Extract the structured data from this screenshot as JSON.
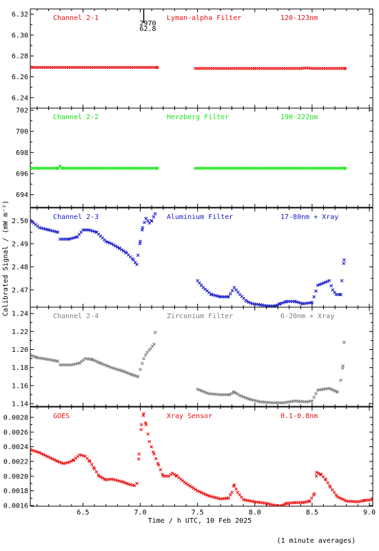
{
  "colors": {
    "red": "#e81010",
    "green": "#14e614",
    "blue": "#1818c8",
    "gray": "#7c7c7c",
    "axis": "#000000"
  },
  "axes": {
    "xlabel": "Time / h UTC, 10 Feb 2025",
    "ylabel": "Calibrated Signal / (mW m⁻²)",
    "xlim": [
      6.04,
      9.03
    ],
    "xticks": [
      "6.5",
      "7.0",
      "7.5",
      "8.0",
      "8.5",
      "9.0"
    ],
    "footnote": "(1 minute averages)",
    "marker": {
      "x": 7.03,
      "line1": "2970",
      "line2": "62.8"
    }
  },
  "chart_data": [
    {
      "type": "scatter",
      "color_key": "red",
      "labels": {
        "channel": "Channel 2-1",
        "filter": "Lyman-alpha Filter",
        "band": "120-123nm"
      },
      "ylim": [
        6.23,
        6.325
      ],
      "yticks": [
        "6.24",
        "6.26",
        "6.28",
        "6.30",
        "6.32"
      ],
      "series": [
        [
          [
            6.04,
            6.269
          ],
          [
            7.15,
            6.269
          ]
        ],
        [
          [
            7.48,
            6.268
          ],
          [
            8.0,
            6.268
          ],
          [
            8.4,
            6.268
          ],
          [
            8.45,
            6.2685
          ],
          [
            8.5,
            6.268
          ],
          [
            8.79,
            6.268
          ]
        ]
      ]
    },
    {
      "type": "scatter",
      "color_key": "green",
      "labels": {
        "channel": "Channel 2-2",
        "filter": "Herzberg Filter",
        "band": "190-222nm"
      },
      "ylim": [
        692.8,
        702.2
      ],
      "yticks": [
        "694",
        "696",
        "698",
        "700",
        "702"
      ],
      "series": [
        [
          [
            6.04,
            696.5
          ],
          [
            6.28,
            696.5
          ],
          [
            6.3,
            696.7
          ],
          [
            6.32,
            696.5
          ],
          [
            7.15,
            696.5
          ]
        ],
        [
          [
            7.48,
            696.5
          ],
          [
            8.79,
            696.5
          ]
        ]
      ]
    },
    {
      "type": "scatter",
      "color_key": "blue",
      "labels": {
        "channel": "Channel 2-3",
        "filter": "Aluminium Filter",
        "band": "17-80nm + Xray"
      },
      "ylim": [
        2.4625,
        2.5055
      ],
      "yticks": [
        "2.47",
        "2.48",
        "2.49",
        "2.50"
      ],
      "series": [
        [
          [
            6.04,
            2.5
          ],
          [
            6.07,
            2.499
          ],
          [
            6.12,
            2.497
          ],
          [
            6.2,
            2.496
          ],
          [
            6.28,
            2.495
          ]
        ],
        [
          [
            6.3,
            2.492
          ],
          [
            6.38,
            2.492
          ],
          [
            6.45,
            2.493
          ],
          [
            6.5,
            2.496
          ],
          [
            6.55,
            2.496
          ],
          [
            6.62,
            2.495
          ],
          [
            6.7,
            2.491
          ],
          [
            6.75,
            2.49
          ],
          [
            6.82,
            2.488
          ],
          [
            6.88,
            2.486
          ],
          [
            6.94,
            2.483
          ],
          [
            6.97,
            2.481
          ]
        ],
        [
          [
            6.98,
            2.485
          ],
          [
            7.0,
            2.491
          ],
          [
            7.02,
            2.497
          ],
          [
            7.05,
            2.501
          ],
          [
            7.08,
            2.499
          ],
          [
            7.1,
            2.5
          ],
          [
            7.13,
            2.503
          ]
        ],
        [
          [
            7.5,
            2.474
          ],
          [
            7.55,
            2.471
          ],
          [
            7.62,
            2.468
          ],
          [
            7.7,
            2.467
          ],
          [
            7.77,
            2.467
          ],
          [
            7.82,
            2.471
          ],
          [
            7.87,
            2.468
          ],
          [
            7.93,
            2.465
          ],
          [
            7.98,
            2.464
          ],
          [
            8.05,
            2.4635
          ],
          [
            8.12,
            2.463
          ],
          [
            8.18,
            2.463
          ],
          [
            8.22,
            2.464
          ],
          [
            8.28,
            2.465
          ],
          [
            8.35,
            2.465
          ],
          [
            8.42,
            2.464
          ],
          [
            8.5,
            2.4645
          ],
          [
            8.55,
            2.472
          ],
          [
            8.6,
            2.473
          ],
          [
            8.65,
            2.474
          ],
          [
            8.68,
            2.47
          ],
          [
            8.71,
            2.468
          ],
          [
            8.75,
            2.468
          ]
        ],
        [
          [
            8.76,
            2.474
          ],
          [
            8.78,
            2.483
          ]
        ]
      ]
    },
    {
      "type": "scatter",
      "color_key": "gray",
      "labels": {
        "channel": "Channel 2-4",
        "filter": "Zirconium Filter",
        "band": "6-20nm + Xray"
      },
      "ylim": [
        1.137,
        1.247
      ],
      "yticks": [
        "1.14",
        "1.16",
        "1.18",
        "1.20",
        "1.22",
        "1.24"
      ],
      "series": [
        [
          [
            6.04,
            1.194
          ],
          [
            6.1,
            1.191
          ],
          [
            6.2,
            1.189
          ],
          [
            6.28,
            1.187
          ]
        ],
        [
          [
            6.3,
            1.183
          ],
          [
            6.4,
            1.183
          ],
          [
            6.47,
            1.185
          ],
          [
            6.52,
            1.19
          ],
          [
            6.58,
            1.189
          ],
          [
            6.65,
            1.185
          ],
          [
            6.75,
            1.18
          ],
          [
            6.85,
            1.176
          ],
          [
            6.93,
            1.172
          ],
          [
            6.98,
            1.17
          ]
        ],
        [
          [
            7.0,
            1.178
          ],
          [
            7.03,
            1.19
          ],
          [
            7.06,
            1.197
          ],
          [
            7.09,
            1.201
          ],
          [
            7.12,
            1.206
          ],
          [
            7.13,
            1.219
          ]
        ],
        [
          [
            7.5,
            1.156
          ],
          [
            7.6,
            1.151
          ],
          [
            7.7,
            1.15
          ],
          [
            7.78,
            1.15
          ],
          [
            7.82,
            1.153
          ],
          [
            7.87,
            1.149
          ],
          [
            7.95,
            1.145
          ],
          [
            8.05,
            1.142
          ],
          [
            8.15,
            1.141
          ],
          [
            8.25,
            1.141
          ],
          [
            8.35,
            1.143
          ],
          [
            8.45,
            1.142
          ],
          [
            8.5,
            1.143
          ],
          [
            8.55,
            1.155
          ],
          [
            8.65,
            1.157
          ],
          [
            8.72,
            1.153
          ]
        ],
        [
          [
            8.75,
            1.166
          ],
          [
            8.77,
            1.182
          ],
          [
            8.78,
            1.208
          ]
        ]
      ]
    },
    {
      "type": "scatter",
      "color_key": "red",
      "labels": {
        "channel": "GOES",
        "filter": "Xray Sensor",
        "band": "0.1-0.8nm"
      },
      "ylim": [
        0.00159,
        0.00294
      ],
      "yticks": [
        "0.0016",
        "0.0018",
        "0.0020",
        "0.0022",
        "0.0024",
        "0.0026",
        "0.0028"
      ],
      "series": [
        [
          [
            6.04,
            0.00236
          ],
          [
            6.12,
            0.00232
          ],
          [
            6.2,
            0.00226
          ],
          [
            6.28,
            0.0022
          ],
          [
            6.33,
            0.00217
          ],
          [
            6.38,
            0.00219
          ],
          [
            6.42,
            0.00222
          ],
          [
            6.47,
            0.00229
          ],
          [
            6.52,
            0.00227
          ],
          [
            6.56,
            0.0022
          ],
          [
            6.6,
            0.0021
          ],
          [
            6.64,
            0.002
          ],
          [
            6.7,
            0.00195
          ],
          [
            6.75,
            0.00196
          ],
          [
            6.8,
            0.00194
          ],
          [
            6.85,
            0.00192
          ],
          [
            6.9,
            0.00189
          ],
          [
            6.95,
            0.00187
          ]
        ],
        [
          [
            6.97,
            0.0019
          ],
          [
            6.99,
            0.0023
          ],
          [
            7.01,
            0.0027
          ],
          [
            7.03,
            0.00285
          ],
          [
            7.05,
            0.0027
          ],
          [
            7.08,
            0.00247
          ],
          [
            7.12,
            0.0023
          ],
          [
            7.16,
            0.00215
          ],
          [
            7.2,
            0.002
          ],
          [
            7.25,
            0.002
          ],
          [
            7.28,
            0.00204
          ],
          [
            7.32,
            0.002
          ],
          [
            7.4,
            0.0019
          ],
          [
            7.5,
            0.0018
          ],
          [
            7.6,
            0.00173
          ],
          [
            7.7,
            0.00169
          ],
          [
            7.77,
            0.0017
          ],
          [
            7.8,
            0.00178
          ],
          [
            7.82,
            0.00188
          ],
          [
            7.85,
            0.00178
          ],
          [
            7.9,
            0.00168
          ],
          [
            8.0,
            0.00165
          ],
          [
            8.1,
            0.00163
          ],
          [
            8.15,
            0.00161
          ],
          [
            8.22,
            0.00159
          ],
          [
            8.28,
            0.00163
          ],
          [
            8.35,
            0.00164
          ],
          [
            8.42,
            0.00164
          ],
          [
            8.48,
            0.00166
          ],
          [
            8.52,
            0.00176
          ],
          [
            8.54,
            0.00205
          ],
          [
            8.58,
            0.00202
          ],
          [
            8.62,
            0.00195
          ],
          [
            8.66,
            0.00185
          ],
          [
            8.72,
            0.00172
          ],
          [
            8.8,
            0.00166
          ],
          [
            8.9,
            0.00165
          ],
          [
            8.96,
            0.00167
          ],
          [
            9.03,
            0.00168
          ]
        ]
      ]
    }
  ]
}
